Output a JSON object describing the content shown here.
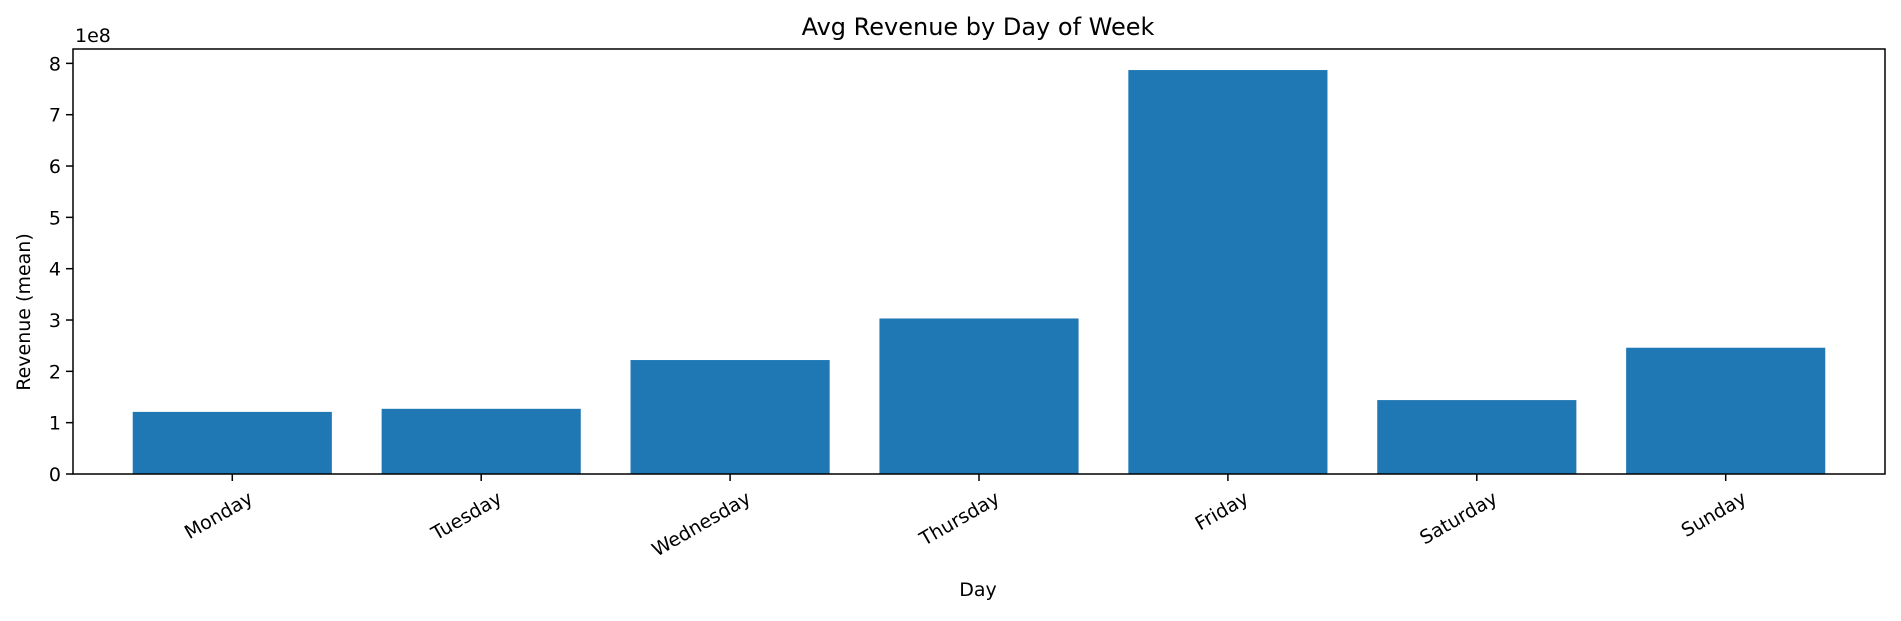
{
  "chart_data": {
    "type": "bar",
    "title": "Avg Revenue by Day of Week",
    "xlabel": "Day",
    "ylabel": "Revenue (mean)",
    "categories": [
      "Monday",
      "Tuesday",
      "Wednesday",
      "Thursday",
      "Friday",
      "Saturday",
      "Sunday"
    ],
    "values": [
      121000000,
      127000000,
      222000000,
      303000000,
      787000000,
      144000000,
      246000000
    ],
    "ylim": [
      0,
      828000000
    ],
    "yticks": [
      0,
      1,
      2,
      3,
      4,
      5,
      6,
      7,
      8
    ],
    "y_offset_label": "1e8",
    "bar_color": "#1f77b4",
    "grid": false,
    "legend": "none"
  }
}
